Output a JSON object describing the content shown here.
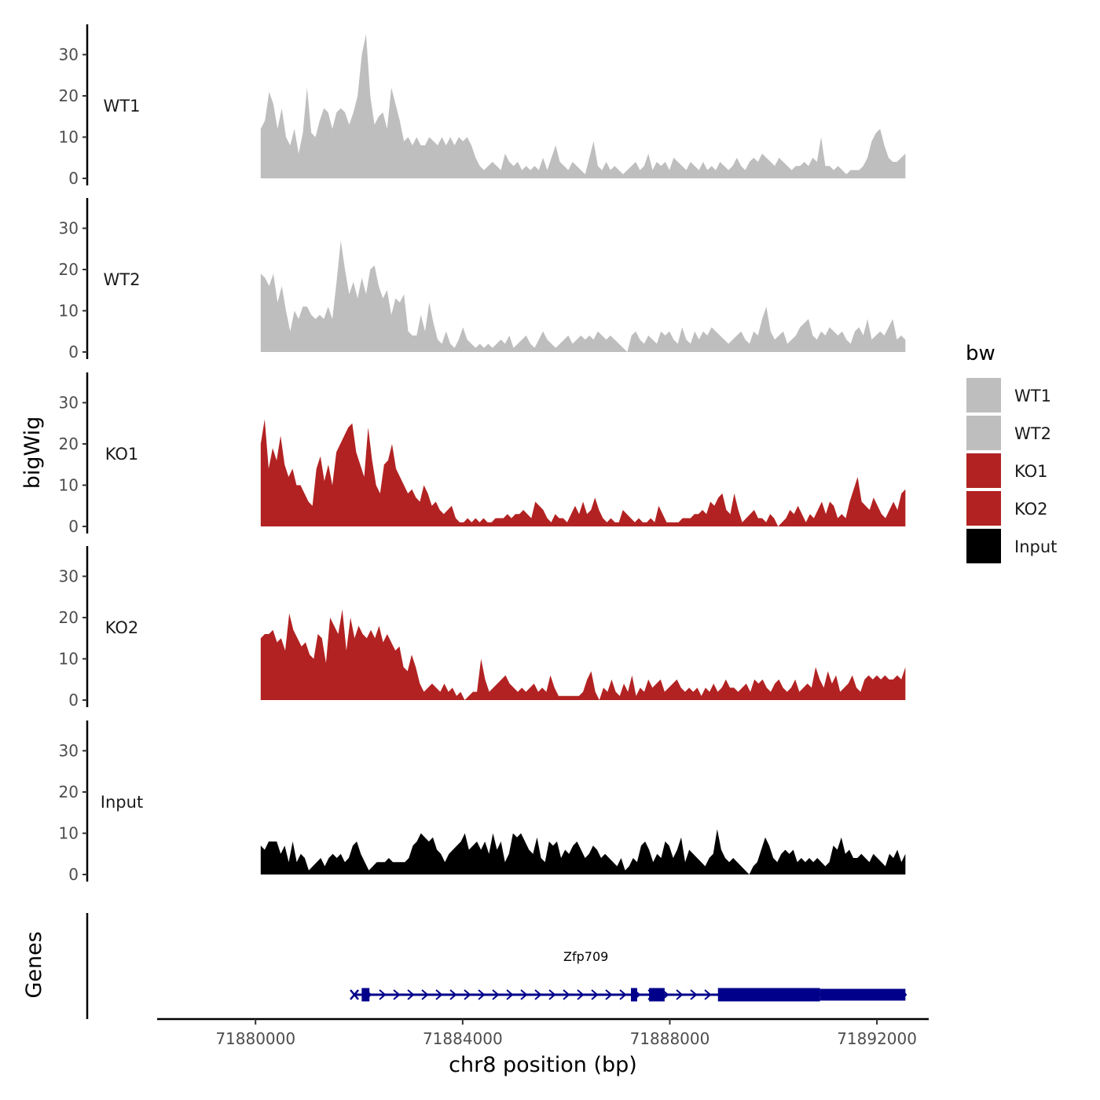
{
  "chart_data": {
    "type": "area",
    "chromosome": "chr8",
    "xlabel": "chr8 position (bp)",
    "ylabel": "bigWig",
    "genes_panel_label": "Genes",
    "xlim": [
      71878100,
      71893000
    ],
    "ylim": [
      0,
      36
    ],
    "x_ticks": [
      71880000,
      71884000,
      71888000,
      71892000
    ],
    "x_tick_labels": [
      "71880000",
      "71884000",
      "71888000",
      "71892000"
    ],
    "y_ticks": [
      0,
      10,
      20,
      30
    ],
    "y_tick_labels": [
      "0",
      "10",
      "20",
      "30"
    ],
    "track_start": 71880100,
    "track_end": 71892550,
    "legend": {
      "title": "bw",
      "entries": [
        {
          "label": "WT1",
          "color": "#bebebe"
        },
        {
          "label": "WT2",
          "color": "#bebebe"
        },
        {
          "label": "KO1",
          "color": "#b22222"
        },
        {
          "label": "KO2",
          "color": "#b22222"
        },
        {
          "label": "Input",
          "color": "#000000"
        }
      ]
    },
    "series": [
      {
        "name": "WT1",
        "color": "#bebebe",
        "values": [
          12,
          14,
          21,
          18,
          12,
          17,
          10,
          8,
          12,
          6,
          11,
          22,
          11,
          10,
          14,
          17,
          16,
          12,
          16,
          17,
          16,
          13,
          16,
          20,
          30,
          35,
          20,
          13,
          15,
          16,
          12,
          22,
          18,
          14,
          9,
          10,
          8,
          10,
          8,
          8,
          10,
          9,
          8,
          10,
          8,
          10,
          8,
          10,
          9,
          10,
          8,
          5,
          3,
          2,
          3,
          4,
          3,
          2,
          6,
          4,
          3,
          4,
          2,
          3,
          2,
          3,
          2,
          5,
          2,
          5,
          8,
          4,
          3,
          2,
          4,
          3,
          2,
          1,
          5,
          9,
          3,
          2,
          4,
          2,
          3,
          2,
          1,
          2,
          3,
          4,
          2,
          3,
          6,
          2,
          4,
          3,
          4,
          2,
          5,
          4,
          3,
          2,
          4,
          3,
          2,
          4,
          2,
          3,
          2,
          4,
          3,
          2,
          3,
          5,
          3,
          2,
          4,
          5,
          4,
          6,
          5,
          4,
          3,
          5,
          4,
          3,
          2,
          3,
          3,
          4,
          3,
          5,
          4,
          10,
          3,
          3,
          2,
          3,
          2,
          1,
          2,
          2,
          2,
          3,
          5,
          9,
          11,
          12,
          8,
          5,
          4,
          4,
          5,
          6
        ]
      },
      {
        "name": "WT2",
        "color": "#bebebe",
        "values": [
          19,
          18,
          16,
          19,
          12,
          16,
          10,
          5,
          10,
          8,
          11,
          11,
          9,
          8,
          9,
          8,
          11,
          8,
          17,
          27,
          20,
          14,
          17,
          13,
          18,
          14,
          20,
          21,
          16,
          13,
          15,
          9,
          13,
          12,
          14,
          5,
          4,
          4,
          9,
          5,
          12,
          7,
          3,
          2,
          5,
          2,
          1,
          3,
          6,
          3,
          2,
          1,
          2,
          1,
          2,
          1,
          2,
          3,
          2,
          4,
          1,
          2,
          3,
          4,
          2,
          1,
          3,
          5,
          3,
          2,
          1,
          2,
          3,
          4,
          2,
          3,
          4,
          3,
          4,
          3,
          5,
          4,
          3,
          4,
          3,
          2,
          1,
          0,
          4,
          5,
          3,
          2,
          4,
          3,
          2,
          5,
          4,
          5,
          3,
          2,
          6,
          3,
          2,
          5,
          3,
          5,
          4,
          6,
          5,
          4,
          3,
          2,
          3,
          4,
          5,
          3,
          2,
          5,
          4,
          8,
          11,
          5,
          3,
          4,
          5,
          2,
          3,
          4,
          6,
          7,
          8,
          4,
          3,
          5,
          4,
          6,
          5,
          4,
          5,
          3,
          2,
          5,
          6,
          4,
          8,
          3,
          4,
          5,
          4,
          6,
          8,
          3,
          4,
          3
        ]
      },
      {
        "name": "KO1",
        "color": "#b22222",
        "values": [
          20,
          26,
          14,
          19,
          16,
          22,
          15,
          12,
          14,
          10,
          10,
          8,
          6,
          5,
          14,
          17,
          11,
          15,
          10,
          18,
          20,
          22,
          24,
          25,
          18,
          15,
          12,
          24,
          16,
          10,
          8,
          15,
          16,
          20,
          14,
          12,
          10,
          8,
          9,
          7,
          6,
          10,
          8,
          5,
          6,
          4,
          3,
          4,
          5,
          2,
          1,
          1,
          2,
          1,
          2,
          1,
          2,
          1,
          1,
          2,
          2,
          2,
          3,
          2,
          3,
          3,
          4,
          3,
          2,
          6,
          5,
          4,
          2,
          1,
          3,
          2,
          2,
          1,
          3,
          5,
          3,
          6,
          3,
          4,
          7,
          4,
          2,
          1,
          2,
          1,
          1,
          4,
          3,
          2,
          1,
          2,
          1,
          1,
          2,
          1,
          5,
          3,
          1,
          1,
          1,
          1,
          2,
          2,
          2,
          3,
          3,
          4,
          3,
          6,
          5,
          7,
          8,
          4,
          3,
          8,
          4,
          1,
          2,
          3,
          4,
          2,
          2,
          1,
          3,
          2,
          0,
          1,
          2,
          4,
          3,
          5,
          3,
          1,
          3,
          2,
          4,
          6,
          3,
          6,
          5,
          2,
          3,
          2,
          6,
          9,
          12,
          6,
          5,
          4,
          7,
          5,
          3,
          2,
          4,
          6,
          4,
          8,
          9
        ]
      },
      {
        "name": "KO2",
        "color": "#b22222",
        "values": [
          15,
          16,
          16,
          17,
          14,
          15,
          12,
          21,
          17,
          15,
          13,
          14,
          11,
          10,
          16,
          15,
          9,
          20,
          18,
          16,
          22,
          12,
          20,
          15,
          18,
          16,
          15,
          17,
          15,
          18,
          14,
          16,
          14,
          12,
          13,
          8,
          7,
          11,
          8,
          4,
          2,
          3,
          4,
          3,
          2,
          4,
          2,
          3,
          1,
          2,
          0,
          1,
          2,
          2,
          10,
          5,
          2,
          3,
          4,
          5,
          6,
          4,
          3,
          2,
          3,
          2,
          3,
          4,
          2,
          3,
          2,
          6,
          3,
          1,
          1,
          1,
          1,
          1,
          1,
          2,
          5,
          7,
          2,
          0,
          3,
          2,
          5,
          2,
          1,
          4,
          2,
          6,
          1,
          3,
          2,
          5,
          3,
          4,
          5,
          2,
          3,
          4,
          5,
          3,
          2,
          3,
          2,
          3,
          1,
          3,
          2,
          4,
          2,
          3,
          5,
          3,
          3,
          2,
          3,
          4,
          2,
          5,
          4,
          5,
          3,
          2,
          4,
          5,
          3,
          2,
          3,
          5,
          2,
          3,
          4,
          3,
          8,
          5,
          3,
          7,
          4,
          6,
          2,
          3,
          4,
          6,
          3,
          2,
          5,
          6,
          5,
          6,
          5,
          6,
          5,
          5,
          6,
          5,
          8
        ]
      },
      {
        "name": "Input",
        "color": "#000000",
        "values": [
          7,
          6,
          8,
          8,
          8,
          5,
          7,
          3,
          8,
          3,
          5,
          4,
          1,
          2,
          3,
          4,
          2,
          4,
          5,
          4,
          5,
          3,
          4,
          7,
          8,
          5,
          3,
          1,
          2,
          3,
          3,
          3,
          4,
          3,
          3,
          3,
          3,
          4,
          7,
          8,
          10,
          9,
          8,
          9,
          6,
          5,
          3,
          5,
          6,
          7,
          8,
          10,
          6,
          7,
          8,
          6,
          8,
          5,
          10,
          6,
          8,
          3,
          5,
          10,
          9,
          10,
          8,
          6,
          5,
          9,
          4,
          3,
          8,
          7,
          8,
          4,
          6,
          5,
          7,
          8,
          6,
          4,
          5,
          7,
          6,
          4,
          5,
          4,
          3,
          2,
          4,
          1,
          2,
          4,
          3,
          7,
          8,
          6,
          3,
          5,
          4,
          8,
          7,
          4,
          6,
          9,
          3,
          6,
          5,
          4,
          3,
          2,
          4,
          5,
          11,
          6,
          4,
          3,
          4,
          3,
          2,
          1,
          0,
          2,
          3,
          6,
          9,
          7,
          4,
          3,
          5,
          6,
          5,
          6,
          3,
          4,
          3,
          4,
          3,
          4,
          3,
          2,
          3,
          7,
          6,
          9,
          5,
          6,
          4,
          4,
          5,
          4,
          3,
          5,
          4,
          3,
          2,
          5,
          4,
          6,
          3,
          5
        ]
      }
    ],
    "genes": [
      {
        "name": "Zfp709",
        "color": "#00008b",
        "start": 71882000,
        "end": 71892550,
        "exons": [
          {
            "start": 71882050,
            "end": 71882200,
            "type": "coding"
          },
          {
            "start": 71887250,
            "end": 71887370,
            "type": "coding"
          },
          {
            "start": 71887600,
            "end": 71887900,
            "type": "coding"
          },
          {
            "start": 71888930,
            "end": 71890900,
            "type": "coding"
          },
          {
            "start": 71890900,
            "end": 71892550,
            "type": "utr"
          }
        ]
      }
    ]
  }
}
